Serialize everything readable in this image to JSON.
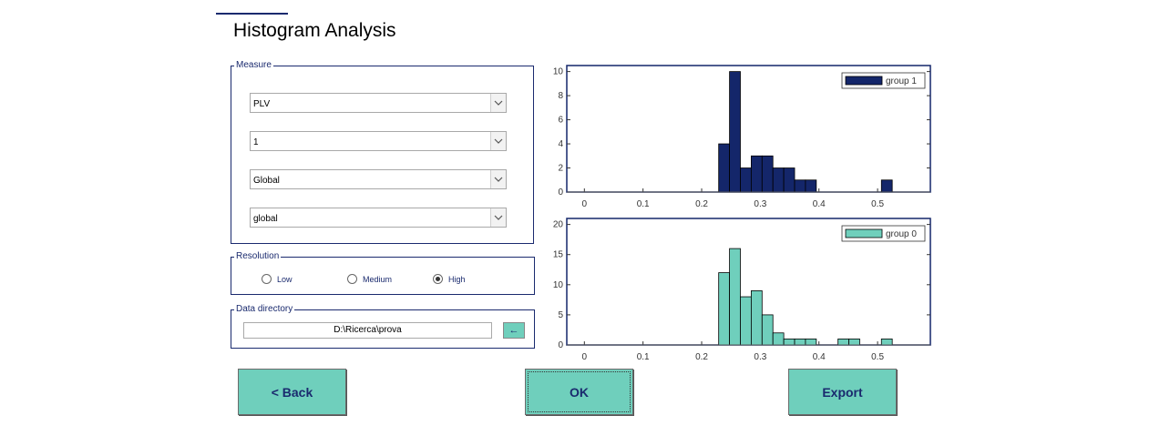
{
  "title": "Histogram Analysis",
  "measure": {
    "legend": "Measure",
    "selects": [
      {
        "value": "PLV"
      },
      {
        "value": "1"
      },
      {
        "value": "Global"
      },
      {
        "value": "global"
      }
    ]
  },
  "resolution": {
    "legend": "Resolution",
    "options": [
      "Low",
      "Medium",
      "High"
    ],
    "selected": "High"
  },
  "data_directory": {
    "legend": "Data directory",
    "value": "D:\\Ricerca\\prova",
    "browse_icon": "←"
  },
  "buttons": {
    "back": "<  Back",
    "ok": "OK",
    "export": "Export"
  },
  "colors": {
    "accent": "#6fcfbc",
    "navy": "#14266a",
    "teal": "#6fcfbc"
  },
  "chart_data": [
    {
      "type": "bar",
      "legend": "group 1",
      "color": "#14266a",
      "xlim": [
        -0.03,
        0.59
      ],
      "ylim": [
        0,
        10.5
      ],
      "yticks": [
        0,
        2,
        4,
        6,
        8,
        10
      ],
      "xticks": [
        0,
        0.1,
        0.2,
        0.3,
        0.4,
        0.5
      ],
      "xticklabels": [
        "0",
        "0.1",
        "0.2",
        "0.3",
        "0.4",
        "0.5"
      ],
      "bin_width": 0.0185,
      "bins": [
        {
          "x": 0.229,
          "y": 4
        },
        {
          "x": 0.2475,
          "y": 10
        },
        {
          "x": 0.266,
          "y": 2
        },
        {
          "x": 0.2845,
          "y": 3
        },
        {
          "x": 0.303,
          "y": 3
        },
        {
          "x": 0.3215,
          "y": 2
        },
        {
          "x": 0.34,
          "y": 2
        },
        {
          "x": 0.3585,
          "y": 1
        },
        {
          "x": 0.377,
          "y": 1
        },
        {
          "x": 0.5065,
          "y": 1
        }
      ]
    },
    {
      "type": "bar",
      "legend": "group 0",
      "color": "#6fcfbc",
      "xlim": [
        -0.03,
        0.59
      ],
      "ylim": [
        0,
        21
      ],
      "yticks": [
        0,
        5,
        10,
        15,
        20
      ],
      "xticks": [
        0,
        0.1,
        0.2,
        0.3,
        0.4,
        0.5
      ],
      "xticklabels": [
        "0",
        "0.1",
        "0.2",
        "0.3",
        "0.4",
        "0.5"
      ],
      "bin_width": 0.0185,
      "bins": [
        {
          "x": 0.229,
          "y": 12
        },
        {
          "x": 0.2475,
          "y": 16
        },
        {
          "x": 0.266,
          "y": 8
        },
        {
          "x": 0.2845,
          "y": 9
        },
        {
          "x": 0.303,
          "y": 5
        },
        {
          "x": 0.3215,
          "y": 2
        },
        {
          "x": 0.34,
          "y": 1
        },
        {
          "x": 0.3585,
          "y": 1
        },
        {
          "x": 0.377,
          "y": 1
        },
        {
          "x": 0.4325,
          "y": 1
        },
        {
          "x": 0.451,
          "y": 1
        },
        {
          "x": 0.5065,
          "y": 1
        }
      ]
    }
  ]
}
